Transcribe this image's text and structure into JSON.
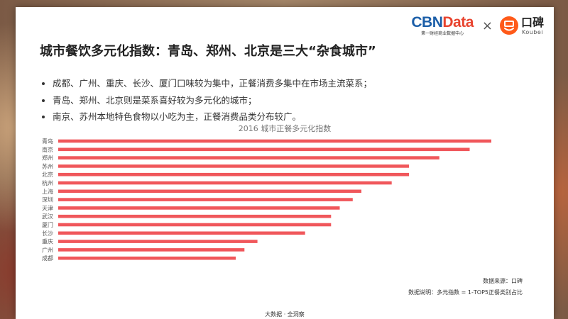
{
  "header": {
    "cbn_logo_part1": "CBN",
    "cbn_logo_part2": "Data",
    "cbn_tagline": "第一财经商业数据中心",
    "times": "×",
    "koubei_cn": "口碑",
    "koubei_en": "Koubei"
  },
  "title": "城市餐饮多元化指数：青岛、郑州、北京是三大“杂食城市”",
  "bullets": [
    "成都、广州、重庆、长沙、厦门口味较为集中，正餐消费多集中在市场主流菜系；",
    "青岛、郑州、北京则是菜系喜好较为多元化的城市；",
    "南京、苏州本地特色食物以小吃为主，正餐消费品类分布较广。"
  ],
  "chart_data": {
    "type": "bar",
    "orientation": "horizontal",
    "title": "2016 城市正餐多元化指数",
    "categories": [
      "青岛",
      "南京",
      "郑州",
      "苏州",
      "北京",
      "杭州",
      "上海",
      "深圳",
      "天津",
      "武汉",
      "厦门",
      "长沙",
      "重庆",
      "广州",
      "成都"
    ],
    "values": [
      100,
      95,
      88,
      81,
      81,
      77,
      70,
      68,
      65,
      63,
      63,
      57,
      46,
      43,
      41
    ],
    "value_unit": "relative index (no axis printed)",
    "grid": false,
    "legend": "none",
    "bar_color": "#f0575b"
  },
  "source": "数据来源：口碑",
  "note": "数据说明：多元指数 = 1-TOP5正餐类别占比",
  "footer": "大数据 · 全洞察"
}
